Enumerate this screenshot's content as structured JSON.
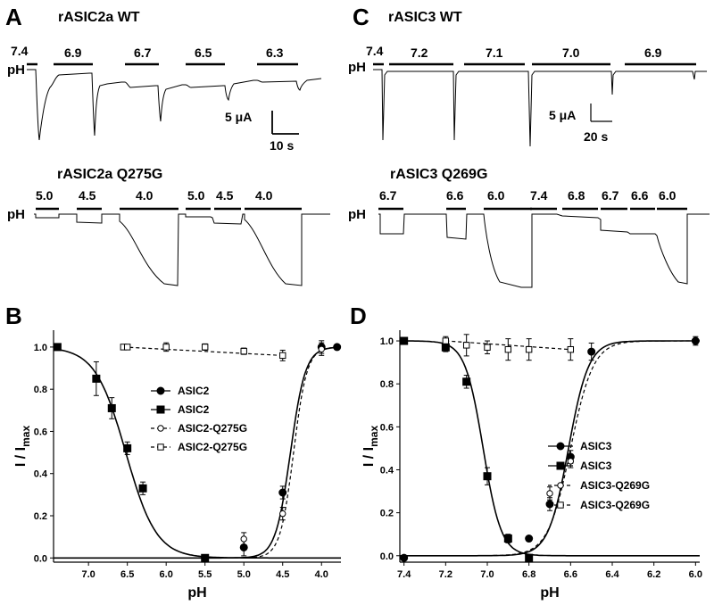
{
  "panels": {
    "A": "A",
    "B": "B",
    "C": "C",
    "D": "D"
  },
  "titles": {
    "a_wt": "rASIC2a WT",
    "a_mut": "rASIC2a Q275G",
    "c_wt": "rASIC3 WT",
    "c_mut": "rASIC3 Q269G"
  },
  "ph_label": "pH",
  "traces": {
    "a_wt": [
      "7.4",
      "6.9",
      "6.7",
      "6.5",
      "6.3"
    ],
    "a_mut": [
      "5.0",
      "4.5",
      "4.0",
      "5.0",
      "4.5",
      "4.0"
    ],
    "c_wt": [
      "7.4",
      "7.2",
      "7.1",
      "7.0",
      "6.9"
    ],
    "c_mut": [
      "6.7",
      "6.6",
      "6.0",
      "7.4",
      "6.8",
      "6.7",
      "6.6",
      "6.0"
    ]
  },
  "scalebars": {
    "a_current": "5 μA",
    "a_time": "10 s",
    "c_current": "5 μA",
    "c_time": "20 s"
  },
  "chart_data": [
    {
      "type": "scatter",
      "panel": "B",
      "xlabel": "pH",
      "ylabel_main": "I / I",
      "ylabel_sub": "max",
      "xlim": [
        7.45,
        3.75
      ],
      "ylim": [
        -0.02,
        1.08
      ],
      "x_ticks": [
        {
          "v": 7.0,
          "t": "7.0"
        },
        {
          "v": 6.5,
          "t": "6.5"
        },
        {
          "v": 6.0,
          "t": "6.0"
        },
        {
          "v": 5.5,
          "t": "5.5"
        },
        {
          "v": 5.0,
          "t": "5.0"
        },
        {
          "v": 4.5,
          "t": "4.5"
        },
        {
          "v": 4.0,
          "t": "4.0"
        }
      ],
      "y_ticks": [
        {
          "v": 0.0,
          "t": "0.0"
        },
        {
          "v": 0.2,
          "t": "0.2"
        },
        {
          "v": 0.4,
          "t": "0.4"
        },
        {
          "v": 0.6,
          "t": "0.6"
        },
        {
          "v": 0.8,
          "t": "0.8"
        },
        {
          "v": 1.0,
          "t": "1.0"
        }
      ],
      "series": [
        {
          "name": "ASIC2",
          "marker": "circle-filled",
          "line": "solid",
          "x": [
            3.8,
            4.0,
            4.5,
            5.0
          ],
          "y": [
            1.0,
            1.0,
            0.31,
            0.05
          ],
          "err": [
            0,
            0.03,
            0.03,
            0.04
          ],
          "curve": {
            "kind": "activation",
            "pH50": 4.4,
            "n": 4.5
          }
        },
        {
          "name": "ASIC2",
          "marker": "square-filled",
          "line": "solid",
          "x": [
            7.4,
            6.9,
            6.7,
            6.5,
            6.3,
            5.5
          ],
          "y": [
            1.0,
            0.85,
            0.71,
            0.52,
            0.33,
            0.0
          ],
          "err": [
            0,
            0.08,
            0.05,
            0.03,
            0.03,
            0
          ],
          "curve": {
            "kind": "inhibition",
            "pH50": 6.52,
            "n": 2.2
          }
        },
        {
          "name": "ASIC2-Q275G",
          "marker": "circle-open",
          "line": "dashed",
          "x": [
            4.0,
            4.5,
            5.0
          ],
          "y": [
            0.99,
            0.21,
            0.09
          ],
          "err": [
            0.03,
            0.03,
            0.03
          ],
          "curve": {
            "kind": "activation",
            "pH50": 4.36,
            "n": 5.0
          }
        },
        {
          "name": "ASIC2-Q275G",
          "marker": "square-open",
          "line": "dashed",
          "x": [
            6.55,
            6.5,
            6.0,
            5.5,
            5.0,
            4.5
          ],
          "y": [
            1.0,
            1.0,
            1.0,
            1.0,
            0.98,
            0.96
          ],
          "err": [
            0.01,
            0.01,
            0.02,
            0.015,
            0.015,
            0.025
          ],
          "curve": {
            "kind": "linear",
            "x0": 6.55,
            "y0": 1.0,
            "x1": 4.5,
            "y1": 0.96
          }
        }
      ]
    },
    {
      "type": "scatter",
      "panel": "D",
      "xlabel": "pH",
      "ylabel_main": "I / I",
      "ylabel_sub": "max",
      "xlim": [
        7.42,
        5.98
      ],
      "ylim": [
        -0.03,
        1.05
      ],
      "x_ticks": [
        {
          "v": 7.4,
          "t": "7.4"
        },
        {
          "v": 7.2,
          "t": "7.2"
        },
        {
          "v": 7.0,
          "t": "7.0"
        },
        {
          "v": 6.8,
          "t": "6.8"
        },
        {
          "v": 6.6,
          "t": "6.6"
        },
        {
          "v": 6.4,
          "t": "6.4"
        },
        {
          "v": 6.2,
          "t": "6.2"
        },
        {
          "v": 6.0,
          "t": "6.0"
        }
      ],
      "y_ticks": [
        {
          "v": 0.0,
          "t": "0.0"
        },
        {
          "v": 0.2,
          "t": "0.2"
        },
        {
          "v": 0.4,
          "t": "0.4"
        },
        {
          "v": 0.6,
          "t": "0.6"
        },
        {
          "v": 0.8,
          "t": "0.8"
        },
        {
          "v": 1.0,
          "t": "1.0"
        }
      ],
      "series": [
        {
          "name": "ASIC3",
          "marker": "circle-filled",
          "line": "solid",
          "x": [
            7.4,
            6.8,
            6.7,
            6.6,
            6.5,
            6.0
          ],
          "y": [
            -0.01,
            0.08,
            0.24,
            0.46,
            0.95,
            1.0
          ],
          "err": [
            0,
            0.01,
            0.03,
            0.03,
            0.04,
            0.02
          ],
          "curve": {
            "kind": "activation",
            "pH50": 6.61,
            "n": 9.0
          }
        },
        {
          "name": "ASIC3",
          "marker": "square-filled",
          "line": "solid",
          "x": [
            7.4,
            7.2,
            7.1,
            7.0,
            6.9,
            6.8
          ],
          "y": [
            1.0,
            0.97,
            0.81,
            0.37,
            0.08,
            -0.01
          ],
          "err": [
            0,
            0.02,
            0.03,
            0.04,
            0.02,
            0
          ],
          "curve": {
            "kind": "inhibition",
            "pH50": 7.02,
            "n": 10.0
          }
        },
        {
          "name": "ASIC3-Q269G",
          "marker": "circle-open",
          "line": "dashed",
          "x": [
            6.7,
            6.6
          ],
          "y": [
            0.29,
            0.44
          ],
          "err": [
            0.03,
            0.03
          ],
          "curve": {
            "kind": "activation",
            "pH50": 6.6,
            "n": 8.0
          }
        },
        {
          "name": "ASIC3-Q269G",
          "marker": "square-open",
          "line": "dashed",
          "x": [
            7.2,
            7.1,
            7.0,
            6.9,
            6.8,
            6.6
          ],
          "y": [
            1.0,
            0.98,
            0.97,
            0.96,
            0.96,
            0.96
          ],
          "err": [
            0.02,
            0.05,
            0.03,
            0.05,
            0.05,
            0.05
          ],
          "curve": {
            "kind": "linear",
            "x0": 7.2,
            "y0": 1.0,
            "x1": 6.6,
            "y1": 0.96
          }
        }
      ]
    }
  ]
}
